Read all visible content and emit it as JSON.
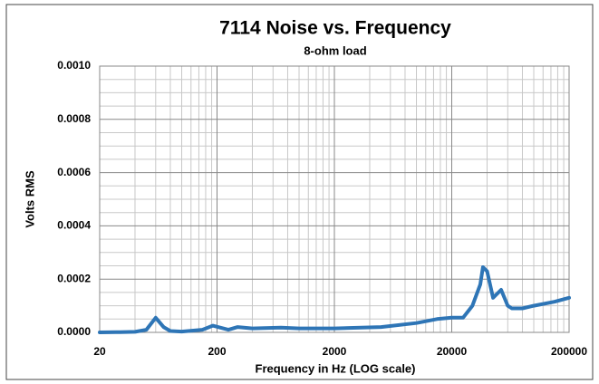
{
  "chart_data": {
    "type": "line",
    "title": "7114 Noise vs. Frequency",
    "subtitle": "8-ohm load",
    "xlabel": "Frequency in Hz (LOG scale)",
    "ylabel": "Volts RMS",
    "xscale": "log",
    "grid": true,
    "xlim": [
      20,
      200000
    ],
    "xticks": [
      20,
      200,
      2000,
      20000,
      200000
    ],
    "ylim": [
      0,
      0.001
    ],
    "yticks": [
      {
        "value": 0,
        "label": "0.0000"
      },
      {
        "value": 0.0002,
        "label": "0.0002"
      },
      {
        "value": 0.0004,
        "label": "0.0004"
      },
      {
        "value": 0.0006,
        "label": "0.0006"
      },
      {
        "value": 0.0008,
        "label": "0.0008"
      },
      {
        "value": 0.001,
        "label": "0.0010"
      }
    ],
    "x": [
      20,
      30,
      40,
      50,
      60,
      70,
      80,
      100,
      150,
      184,
      250,
      300,
      400,
      700,
      1000,
      2000,
      5000,
      10000,
      15000,
      20000,
      25000,
      30000,
      35000,
      36900,
      40000,
      45000,
      52700,
      60000,
      65000,
      80000,
      100000,
      150000,
      200000
    ],
    "series": [
      {
        "name": "Volts RMS",
        "color": "#2e75b6",
        "values": [
          0,
          1e-06,
          2e-06,
          1e-05,
          5.5e-05,
          2e-05,
          5e-06,
          3e-06,
          1e-05,
          2.5e-05,
          1e-05,
          2e-05,
          1.5e-05,
          1.8e-05,
          1.5e-05,
          1.5e-05,
          2e-05,
          3.5e-05,
          5e-05,
          5.5e-05,
          5.5e-05,
          0.0001,
          0.00018,
          0.000245,
          0.00023,
          0.00013,
          0.00016,
          0.0001,
          9e-05,
          9e-05,
          0.0001,
          0.000115,
          0.00013
        ]
      }
    ]
  }
}
